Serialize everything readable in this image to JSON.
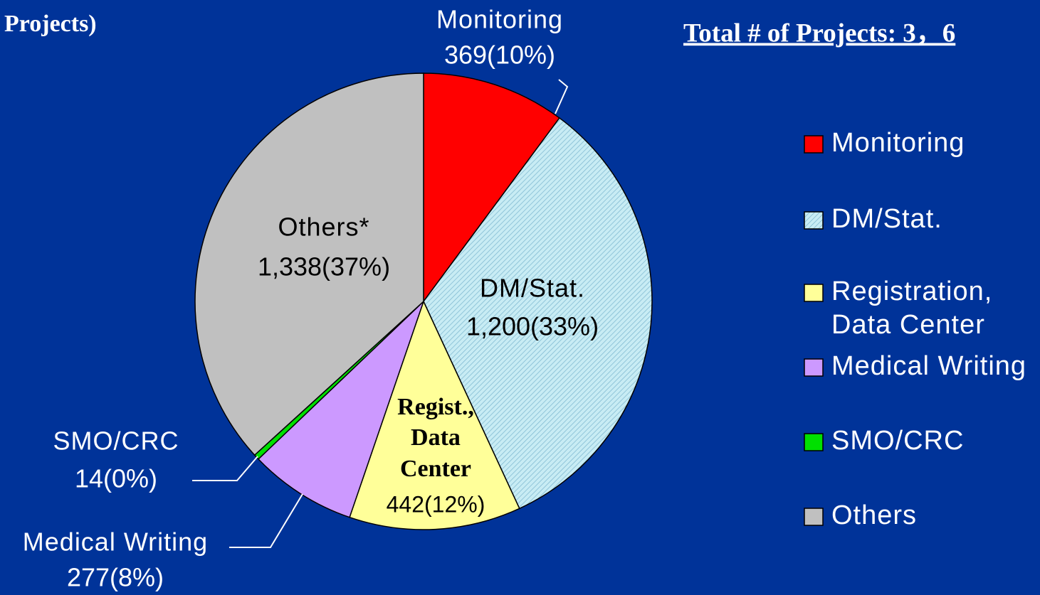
{
  "chart_data": {
    "type": "pie",
    "title": "Projects)",
    "annotation": "Total # of Projects: 3，6",
    "categories": [
      "Monitoring",
      "DM/Stat.",
      "Registration, Data Center",
      "Medical Writing",
      "SMO/CRC",
      "Others"
    ],
    "values": [
      369,
      1200,
      442,
      277,
      14,
      1338
    ],
    "value_labels": [
      "369(10%)",
      "1,200(33%)",
      "442(12%)",
      "277(8%)",
      "14(0%)",
      "1,338(37%)"
    ],
    "slice_labels": [
      [
        "Monitoring"
      ],
      [
        "DM/Stat."
      ],
      [
        "Regist.,",
        "Data",
        "Center"
      ],
      [
        "Medical Writing"
      ],
      [
        "SMO/CRC"
      ],
      [
        "Others*"
      ]
    ],
    "colors": [
      "#ff0000",
      "#c8ecf4",
      "#ffff99",
      "#cc99ff",
      "#00e000",
      "#c0c0c0"
    ],
    "hatched": [
      false,
      true,
      false,
      false,
      false,
      false
    ],
    "legend": "right"
  }
}
